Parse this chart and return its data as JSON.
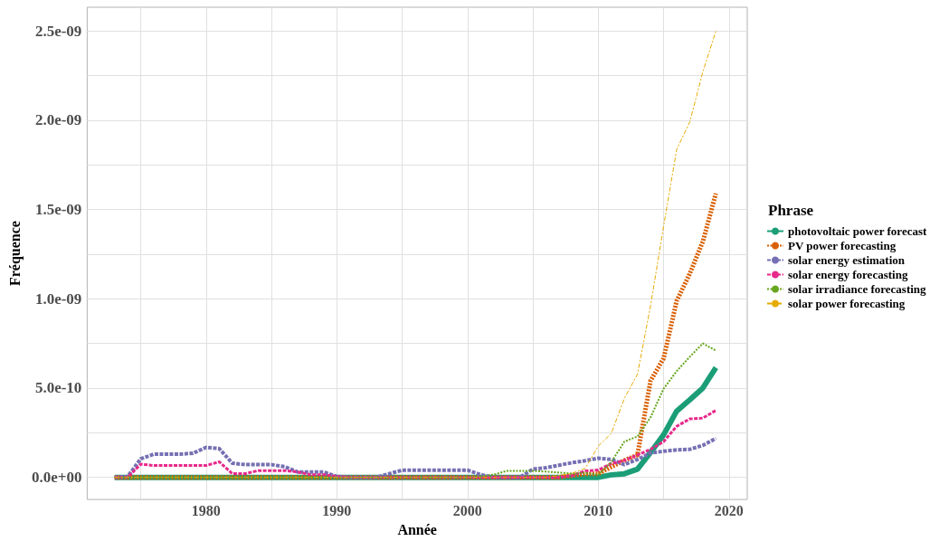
{
  "chart_data": {
    "type": "line",
    "xlabel": "Année",
    "ylabel": "Fréquence",
    "legend_title": "Phrase",
    "legend": "right",
    "grid": true,
    "marker": "none",
    "xlim": [
      1970.9,
      2021.4
    ],
    "ylim": [
      -1.24e-10,
      2.633e-09
    ],
    "xticks": [
      {
        "value": 1975,
        "label": null
      },
      1980,
      {
        "value": 1985,
        "label": null
      },
      1990,
      {
        "value": 1995,
        "label": null
      },
      2000,
      {
        "value": 2005,
        "label": null
      },
      2010,
      {
        "value": 2015,
        "label": null
      },
      2020
    ],
    "yticks": [
      {
        "value": 0,
        "label": "0.0e+00"
      },
      {
        "value": 2.5e-10,
        "label": null
      },
      {
        "value": 5e-10,
        "label": "5.0e-10"
      },
      {
        "value": 7.5e-10,
        "label": null
      },
      {
        "value": 1e-09,
        "label": "1.0e-09"
      },
      {
        "value": 1.25e-09,
        "label": null
      },
      {
        "value": 1.5e-09,
        "label": "1.5e-09"
      },
      {
        "value": 1.75e-09,
        "label": null
      },
      {
        "value": 2e-09,
        "label": "2.0e-09"
      },
      {
        "value": 2.25e-09,
        "label": null
      },
      {
        "value": 2.5e-09,
        "label": "2.5e-09"
      }
    ],
    "x": [
      1973,
      1974,
      1975,
      1976,
      1977,
      1978,
      1979,
      1980,
      1981,
      1982,
      1983,
      1984,
      1985,
      1986,
      1987,
      1988,
      1989,
      1990,
      1991,
      1992,
      1993,
      1994,
      1995,
      1996,
      1997,
      1998,
      1999,
      2000,
      2001,
      2002,
      2003,
      2004,
      2005,
      2006,
      2007,
      2008,
      2009,
      2010,
      2011,
      2012,
      2013,
      2014,
      2015,
      2016,
      2017,
      2018,
      2019
    ],
    "series": [
      {
        "name": "photovoltaic power forecast",
        "color": "#1b9e77",
        "line_style": "solid",
        "values": [
          0,
          0,
          0,
          0,
          0,
          0,
          0,
          0,
          0,
          0,
          0,
          0,
          0,
          0,
          0,
          0,
          0,
          0,
          0,
          0,
          0,
          0,
          0,
          0,
          0,
          0,
          0,
          0,
          0,
          0,
          0,
          0,
          0,
          0,
          0,
          0,
          0,
          0,
          1.4e-11,
          2e-11,
          4.6e-11,
          1.39e-10,
          2.38e-10,
          3.71e-10,
          4.34e-10,
          5e-10,
          6.14e-10
        ]
      },
      {
        "name": "PV power forecasting",
        "color": "#d95f02",
        "line_style": "dotted",
        "values": [
          0,
          0,
          0,
          0,
          0,
          0,
          0,
          0,
          0,
          0,
          0,
          0,
          0,
          0,
          0,
          0,
          0,
          0,
          0,
          0,
          0,
          0,
          0,
          0,
          0,
          0,
          0,
          0,
          0,
          0,
          0,
          0,
          0,
          0,
          0,
          1e-11,
          2e-11,
          2e-11,
          5.9e-11,
          9.5e-11,
          1.25e-10,
          5.41e-10,
          6.66e-10,
          9.88e-10,
          1.14e-09,
          1.32e-09,
          1.59e-09
        ]
      },
      {
        "name": "solar energy estimation",
        "color": "#7570b3",
        "line_style": "dashed",
        "values": [
          0,
          5e-12,
          1.04e-10,
          1.3e-10,
          1.3e-10,
          1.3e-10,
          1.35e-10,
          1.68e-10,
          1.61e-10,
          7.9e-11,
          7.1e-11,
          7.1e-11,
          7.1e-11,
          6e-11,
          3e-11,
          3e-11,
          3e-11,
          5e-12,
          0,
          0,
          0,
          2e-11,
          4e-11,
          4e-11,
          4e-11,
          4e-11,
          4e-11,
          4e-11,
          1.5e-11,
          0,
          0,
          0,
          4.6e-11,
          5.4e-11,
          6.8e-11,
          8.2e-11,
          9.3e-11,
          1.07e-10,
          1e-10,
          7.1e-11,
          1e-10,
          1.36e-10,
          1.46e-10,
          1.54e-10,
          1.57e-10,
          1.79e-10,
          2.18e-10
        ]
      },
      {
        "name": "solar energy forecasting",
        "color": "#e7298a",
        "line_style": "dashed",
        "values": [
          0,
          0,
          7.4e-11,
          6.6e-11,
          6.6e-11,
          6.6e-11,
          6.6e-11,
          6.6e-11,
          8.7e-11,
          2.1e-11,
          2.1e-11,
          3.8e-11,
          3.8e-11,
          3.8e-11,
          3e-11,
          1.5e-11,
          1.5e-11,
          5e-12,
          0,
          0,
          0,
          0,
          0,
          0,
          0,
          0,
          0,
          0,
          0,
          0,
          0,
          0,
          0,
          0,
          0,
          1e-11,
          3.6e-11,
          4.1e-11,
          7.7e-11,
          9.5e-11,
          1.25e-10,
          1.57e-10,
          2e-10,
          2.86e-10,
          3.27e-10,
          3.32e-10,
          3.75e-10
        ]
      },
      {
        "name": "solar irradiance forecasting",
        "color": "#66a61e",
        "line_style": "dotted",
        "values": [
          0,
          0,
          0,
          0,
          0,
          0,
          0,
          0,
          0,
          0,
          0,
          0,
          0,
          0,
          0,
          0,
          0,
          0,
          0,
          0,
          0,
          0,
          0,
          0,
          0,
          0,
          0,
          0,
          5e-12,
          1.5e-11,
          3.6e-11,
          3.6e-11,
          3.6e-11,
          3.2e-11,
          2.7e-11,
          2.1e-11,
          2.5e-11,
          1.4e-11,
          8.6e-11,
          2e-10,
          2.29e-10,
          3.36e-10,
          4.96e-10,
          5.95e-10,
          6.75e-10,
          7.5e-10,
          7.1e-10
        ]
      },
      {
        "name": "solar power forecasting",
        "color": "#e6ab02",
        "line_style": "dashdot",
        "values": [
          0,
          0,
          0,
          0,
          0,
          0,
          0,
          0,
          0,
          0,
          0,
          0,
          0,
          0,
          0,
          0,
          0,
          0,
          0,
          0,
          0,
          0,
          0,
          0,
          0,
          0,
          0,
          0,
          0,
          0,
          0,
          0,
          0,
          0,
          1e-11,
          2.3e-11,
          5e-11,
          1.75e-10,
          2.46e-10,
          4.43e-10,
          5.77e-10,
          9.6e-10,
          1.407e-09,
          1.836e-09,
          1.99e-09,
          2.27e-09,
          2.5e-09
        ]
      }
    ]
  }
}
